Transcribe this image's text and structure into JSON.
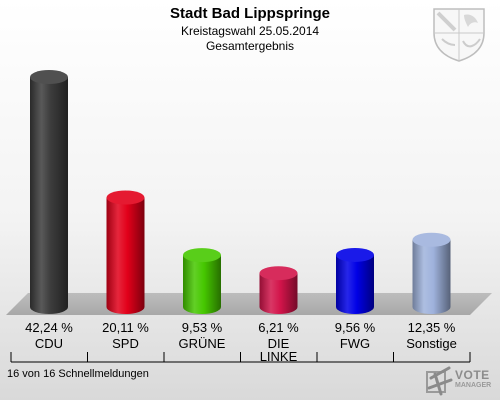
{
  "header": {
    "title": "Stadt Bad Lippspringe",
    "subtitle1": "Kreistagswahl 25.05.2014",
    "subtitle2": "Gesamtergebnis"
  },
  "footer": {
    "text": "16 von 16 Schnellmeldungen"
  },
  "logo": {
    "brand_main": "VOTE",
    "brand_sub": "MANAGER"
  },
  "chart_data": {
    "type": "bar",
    "title": "Stadt Bad Lippspringe",
    "categories": [
      "CDU",
      "SPD",
      "GRÜNE",
      "DIE LINKE",
      "FWG",
      "Sonstige"
    ],
    "values": [
      42.24,
      20.11,
      9.53,
      6.21,
      9.56,
      12.35
    ],
    "value_labels": [
      "42,24 %",
      "20,11 %",
      "9,53 %",
      "6,21 %",
      "9,56 %",
      "12,35 %"
    ],
    "colors": [
      "#3c3c3c",
      "#e2001a",
      "#46c800",
      "#d2144a",
      "#0000e6",
      "#9fb2dc"
    ],
    "ylim": [
      0,
      45
    ],
    "grid": false,
    "legend": "none"
  }
}
